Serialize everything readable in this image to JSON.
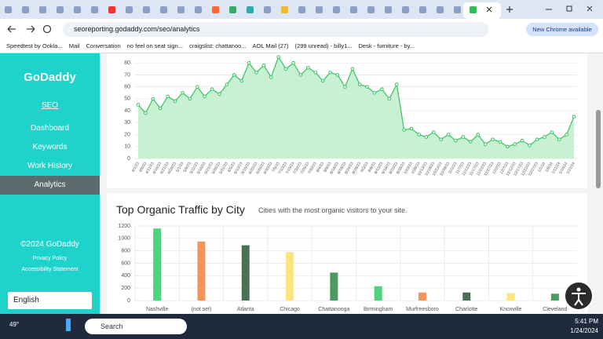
{
  "browser": {
    "url": "seoreporting.godaddy.com/seo/analytics",
    "update_button": "New Chrome available",
    "bookmarks": [
      "Speedtest by Ookla...",
      "Mail",
      "Conversation",
      "no feel on seat sign...",
      "craigslist: chattanoo...",
      "AOL Mail (27)",
      "(299 unread) - billy1...",
      "Desk - furniture - by..."
    ]
  },
  "sidebar": {
    "brand": "GoDaddy",
    "section": "SEO",
    "nav": [
      "Dashboard",
      "Keywords",
      "Work History",
      "Analytics"
    ],
    "active": "Analytics",
    "copyright": "©2024 GoDaddy",
    "links": [
      "Privacy Policy",
      "Accessibility Statement"
    ],
    "language": "English"
  },
  "chart_data": [
    {
      "type": "line",
      "color": "#35c45e",
      "fill": "#c8f0d2",
      "categories": [
        "4/1/23",
        "4/6/23",
        "4/11/23",
        "4/16/23",
        "4/21/23",
        "4/26/23",
        "5/1/23",
        "5/6/23",
        "5/11/23",
        "5/16/23",
        "5/21/23",
        "5/26/23",
        "5/31/23",
        "6/5/23",
        "6/10/23",
        "6/15/23",
        "6/20/23",
        "6/25/23",
        "6/30/23",
        "7/5/23",
        "7/10/23",
        "7/15/23",
        "7/20/23",
        "7/25/23",
        "7/30/23",
        "8/4/23",
        "8/9/23",
        "8/14/23",
        "8/19/23",
        "8/24/23",
        "8/29/23",
        "9/3/23",
        "9/8/23",
        "9/13/23",
        "9/18/23",
        "9/23/23",
        "9/28/23",
        "10/3/23",
        "10/8/23",
        "10/13/23",
        "10/18/23",
        "10/23/23",
        "10/28/23",
        "11/2/23",
        "11/7/23",
        "11/12/23",
        "11/17/23",
        "11/22/23",
        "11/27/23",
        "12/2/23",
        "12/7/23",
        "12/12/23",
        "12/17/23",
        "12/22/23",
        "12/27/23",
        "1/1/24",
        "1/6/24",
        "1/11/24",
        "1/16/24",
        "1/21/24"
      ],
      "values": [
        45,
        38,
        50,
        42,
        52,
        48,
        55,
        50,
        60,
        52,
        58,
        54,
        62,
        70,
        65,
        80,
        72,
        78,
        68,
        85,
        75,
        80,
        70,
        76,
        72,
        65,
        72,
        70,
        60,
        75,
        62,
        60,
        55,
        58,
        50,
        62,
        24,
        25,
        20,
        18,
        22,
        16,
        20,
        15,
        18,
        14,
        20,
        12,
        16,
        14,
        10,
        12,
        15,
        11,
        16,
        18,
        22,
        16,
        20,
        35
      ],
      "ylim": [
        0,
        88
      ],
      "yticks": [
        0,
        10,
        20,
        30,
        40,
        50,
        60,
        70,
        80
      ],
      "grid": true
    },
    {
      "type": "bar",
      "title": "Top Organic Traffic by City",
      "subtitle": "Cities with the most organic visitors to your site.",
      "categories": [
        "Nashville",
        "(not set)",
        "Atlanta",
        "Chicago",
        "Chattanooga",
        "Birmingham",
        "Murfreesboro",
        "Charlotte",
        "Knoxville",
        "Cleveland"
      ],
      "values": [
        1160,
        950,
        890,
        780,
        450,
        230,
        130,
        130,
        120,
        110
      ],
      "colors": [
        "#4cd37b",
        "#f4935a",
        "#4a7155",
        "#fde57e",
        "#4a9a62",
        "#4cd37b",
        "#f4935a",
        "#4a7155",
        "#fde57e",
        "#4a9a62"
      ],
      "ylim": [
        0,
        1200
      ],
      "yticks": [
        0,
        200,
        400,
        600,
        800,
        1000,
        1200
      ],
      "grid": true
    }
  ],
  "taskbar": {
    "weather": "49°",
    "search": "Search",
    "time": "5:41 PM",
    "date": "1/24/2024"
  }
}
